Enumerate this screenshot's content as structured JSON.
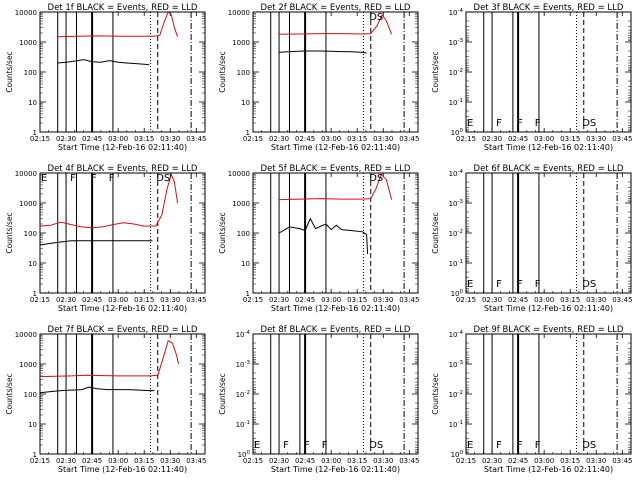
{
  "figure": {
    "background": "#ffffff"
  },
  "chart_data": [
    {
      "type": "line",
      "title": "Det 1f BLACK = Events, RED = LLD",
      "xlabel": "Start Time (12-Feb-16 02:11:40)",
      "ylabel": "Counts/sec",
      "xlim": [
        "02:15",
        "03:50"
      ],
      "ylim": [
        1,
        10000
      ],
      "yscale": "log",
      "xticks": [
        "02:15",
        "02:30",
        "02:45",
        "03:00",
        "03:15",
        "03:30",
        "03:45"
      ],
      "yticks": [
        "1",
        "10",
        "100",
        "1000",
        "10000"
      ],
      "flags": [],
      "series": [
        {
          "color": "#000000",
          "points": [
            [
              2.42,
              200
            ],
            [
              2.5,
              210
            ],
            [
              2.58,
              230
            ],
            [
              2.67,
              260
            ],
            [
              2.75,
              220
            ],
            [
              2.83,
              210
            ],
            [
              2.92,
              240
            ],
            [
              3.0,
              210
            ],
            [
              3.08,
              200
            ],
            [
              3.17,
              190
            ],
            [
              3.25,
              180
            ],
            [
              3.3,
              175
            ]
          ]
        },
        {
          "color": "#d01010",
          "points": [
            [
              2.42,
              1500
            ],
            [
              2.6,
              1550
            ],
            [
              2.8,
              1600
            ],
            [
              3.0,
              1550
            ],
            [
              3.2,
              1550
            ],
            [
              3.35,
              1550
            ],
            [
              3.4,
              1700
            ],
            [
              3.44,
              4500
            ],
            [
              3.48,
              10000
            ],
            [
              3.51,
              8000
            ],
            [
              3.54,
              3000
            ],
            [
              3.57,
              1500
            ]
          ]
        }
      ]
    },
    {
      "type": "line",
      "title": "Det 2f BLACK = Events, RED = LLD",
      "xlabel": "Start Time (12-Feb-16 02:11:40)",
      "ylabel": "Counts/sec",
      "xlim": [
        "02:15",
        "03:50"
      ],
      "ylim": [
        1,
        10000
      ],
      "yscale": "log",
      "xticks": [
        "02:15",
        "02:30",
        "02:45",
        "03:00",
        "03:15",
        "03:30",
        "03:45"
      ],
      "yticks": [
        "1",
        "10",
        "100",
        "1000",
        "10000"
      ],
      "flags": [
        "DS"
      ],
      "series": [
        {
          "color": "#000000",
          "points": [
            [
              2.5,
              450
            ],
            [
              2.6,
              480
            ],
            [
              2.75,
              500
            ],
            [
              2.9,
              500
            ],
            [
              3.0,
              490
            ],
            [
              3.1,
              480
            ],
            [
              3.2,
              470
            ],
            [
              3.3,
              450
            ],
            [
              3.34,
              430
            ]
          ]
        },
        {
          "color": "#d01010",
          "points": [
            [
              2.5,
              1800
            ],
            [
              2.7,
              1850
            ],
            [
              2.9,
              1900
            ],
            [
              3.1,
              1900
            ],
            [
              3.3,
              1850
            ],
            [
              3.38,
              1900
            ],
            [
              3.44,
              3500
            ],
            [
              3.49,
              8000
            ],
            [
              3.53,
              5000
            ],
            [
              3.58,
              1800
            ]
          ]
        }
      ]
    },
    {
      "type": "line",
      "title": "Det 3f BLACK = Events, RED = LLD",
      "xlabel": "Start Time (12-Feb-16 02:11:40)",
      "ylabel": "Counts/sec",
      "xlim": [
        "02:15",
        "03:50"
      ],
      "ylim": [
        1,
        0.0001
      ],
      "yscale": "log",
      "xticks": [
        "02:15",
        "02:30",
        "02:45",
        "03:00",
        "03:15",
        "03:30",
        "03:45"
      ],
      "yticks": [
        "10^-4",
        "10^-3",
        "10^-2",
        "10^-1",
        "10^0"
      ],
      "flags": [
        "E",
        "F",
        "F",
        "F",
        "DS"
      ],
      "series": []
    },
    {
      "type": "line",
      "title": "Det 4f BLACK = Events, RED = LLD",
      "xlabel": "Start Time (12-Feb-16 02:11:40)",
      "ylabel": "Counts/sec",
      "xlim": [
        "02:15",
        "03:50"
      ],
      "ylim": [
        1,
        10000
      ],
      "yscale": "log",
      "xticks": [
        "02:15",
        "02:30",
        "02:45",
        "03:00",
        "03:15",
        "03:30",
        "03:45"
      ],
      "yticks": [
        "1",
        "10",
        "100",
        "1000",
        "10000"
      ],
      "flags": [
        "E",
        "F",
        "F",
        "F",
        "DS"
      ],
      "series": [
        {
          "color": "#000000",
          "points": [
            [
              2.25,
              40
            ],
            [
              2.35,
              45
            ],
            [
              2.45,
              50
            ],
            [
              2.55,
              55
            ],
            [
              2.65,
              55
            ],
            [
              2.75,
              55
            ],
            [
              2.85,
              55
            ],
            [
              2.95,
              55
            ],
            [
              3.05,
              55
            ],
            [
              3.15,
              55
            ],
            [
              3.25,
              55
            ],
            [
              3.33,
              55
            ]
          ]
        },
        {
          "color": "#d01010",
          "points": [
            [
              2.25,
              170
            ],
            [
              2.35,
              180
            ],
            [
              2.45,
              230
            ],
            [
              2.55,
              190
            ],
            [
              2.65,
              160
            ],
            [
              2.75,
              150
            ],
            [
              2.85,
              160
            ],
            [
              2.95,
              190
            ],
            [
              3.05,
              220
            ],
            [
              3.15,
              200
            ],
            [
              3.25,
              170
            ],
            [
              3.36,
              170
            ],
            [
              3.42,
              400
            ],
            [
              3.47,
              3000
            ],
            [
              3.51,
              9000
            ],
            [
              3.54,
              5000
            ],
            [
              3.57,
              1000
            ]
          ]
        }
      ]
    },
    {
      "type": "line",
      "title": "Det 5f BLACK = Events, RED = LLD",
      "xlabel": "Start Time (12-Feb-16 02:11:40)",
      "ylabel": "Counts/sec",
      "xlim": [
        "02:15",
        "03:50"
      ],
      "ylim": [
        1,
        10000
      ],
      "yscale": "log",
      "xticks": [
        "02:15",
        "02:30",
        "02:45",
        "03:00",
        "03:15",
        "03:30",
        "03:45"
      ],
      "yticks": [
        "1",
        "10",
        "100",
        "1000",
        "10000"
      ],
      "flags": [
        "DS"
      ],
      "series": [
        {
          "color": "#000000",
          "points": [
            [
              2.5,
              100
            ],
            [
              2.6,
              160
            ],
            [
              2.7,
              140
            ],
            [
              2.75,
              120
            ],
            [
              2.8,
              300
            ],
            [
              2.85,
              140
            ],
            [
              2.95,
              200
            ],
            [
              3.0,
              130
            ],
            [
              3.05,
              180
            ],
            [
              3.1,
              130
            ],
            [
              3.2,
              120
            ],
            [
              3.3,
              110
            ],
            [
              3.34,
              90
            ],
            [
              3.35,
              20
            ]
          ]
        },
        {
          "color": "#d01010",
          "points": [
            [
              2.5,
              1300
            ],
            [
              2.7,
              1350
            ],
            [
              2.9,
              1400
            ],
            [
              3.1,
              1350
            ],
            [
              3.3,
              1350
            ],
            [
              3.38,
              1400
            ],
            [
              3.43,
              3000
            ],
            [
              3.48,
              9000
            ],
            [
              3.53,
              6000
            ],
            [
              3.58,
              1300
            ]
          ]
        }
      ]
    },
    {
      "type": "line",
      "title": "Det 6f BLACK = Events, RED = LLD",
      "xlabel": "Start Time (12-Feb-16 02:11:40)",
      "ylabel": "Counts/sec",
      "xlim": [
        "02:15",
        "03:50"
      ],
      "ylim": [
        1,
        0.0001
      ],
      "yscale": "log",
      "xticks": [
        "02:15",
        "02:30",
        "02:45",
        "03:00",
        "03:15",
        "03:30",
        "03:45"
      ],
      "yticks": [
        "10^-4",
        "10^-3",
        "10^-2",
        "10^-1",
        "10^0"
      ],
      "flags": [
        "E",
        "F",
        "F",
        "F",
        "DS"
      ],
      "series": []
    },
    {
      "type": "line",
      "title": "Det 7f BLACK = Events, RED = LLD",
      "xlabel": "Start Time (12-Feb-16 02:11:40)",
      "ylabel": "Counts/sec",
      "xlim": [
        "02:15",
        "03:50"
      ],
      "ylim": [
        1,
        10000
      ],
      "yscale": "log",
      "xticks": [
        "02:15",
        "02:30",
        "02:45",
        "03:00",
        "03:15",
        "03:30",
        "03:45"
      ],
      "yticks": [
        "1",
        "10",
        "100",
        "1000",
        "10000"
      ],
      "flags": [],
      "series": [
        {
          "color": "#000000",
          "points": [
            [
              2.25,
              110
            ],
            [
              2.35,
              120
            ],
            [
              2.45,
              130
            ],
            [
              2.55,
              135
            ],
            [
              2.65,
              140
            ],
            [
              2.72,
              170
            ],
            [
              2.8,
              150
            ],
            [
              2.9,
              140
            ],
            [
              3.0,
              140
            ],
            [
              3.1,
              140
            ],
            [
              3.2,
              135
            ],
            [
              3.3,
              130
            ],
            [
              3.35,
              130
            ]
          ]
        },
        {
          "color": "#d01010",
          "points": [
            [
              2.25,
              380
            ],
            [
              2.4,
              390
            ],
            [
              2.55,
              400
            ],
            [
              2.7,
              420
            ],
            [
              2.85,
              410
            ],
            [
              3.0,
              400
            ],
            [
              3.15,
              400
            ],
            [
              3.3,
              400
            ],
            [
              3.38,
              420
            ],
            [
              3.43,
              1500
            ],
            [
              3.48,
              6000
            ],
            [
              3.52,
              5000
            ],
            [
              3.56,
              2000
            ],
            [
              3.58,
              1000
            ]
          ]
        }
      ]
    },
    {
      "type": "line",
      "title": "Det 8f BLACK = Events, RED = LLD",
      "xlabel": "Start Time (12-Feb-16 02:11:40)",
      "ylabel": "Counts/sec",
      "xlim": [
        "02:15",
        "03:50"
      ],
      "ylim": [
        1,
        0.0001
      ],
      "yscale": "log",
      "xticks": [
        "02:15",
        "02:30",
        "02:45",
        "03:00",
        "03:15",
        "03:30",
        "03:45"
      ],
      "yticks": [
        "10^-4",
        "10^-3",
        "10^-2",
        "10^-1",
        "10^0"
      ],
      "flags": [
        "E",
        "F",
        "F",
        "F",
        "DS"
      ],
      "series": []
    },
    {
      "type": "line",
      "title": "Det 9f BLACK = Events, RED = LLD",
      "xlabel": "Start Time (12-Feb-16 02:11:40)",
      "ylabel": "Counts/sec",
      "xlim": [
        "02:15",
        "03:50"
      ],
      "ylim": [
        1,
        0.0001
      ],
      "yscale": "log",
      "xticks": [
        "02:15",
        "02:30",
        "02:45",
        "03:00",
        "03:15",
        "03:30",
        "03:45"
      ],
      "yticks": [
        "10^-4",
        "10^-3",
        "10^-2",
        "10^-1",
        "10^0"
      ],
      "flags": [
        "E",
        "F",
        "F",
        "F",
        "DS"
      ],
      "series": []
    }
  ]
}
